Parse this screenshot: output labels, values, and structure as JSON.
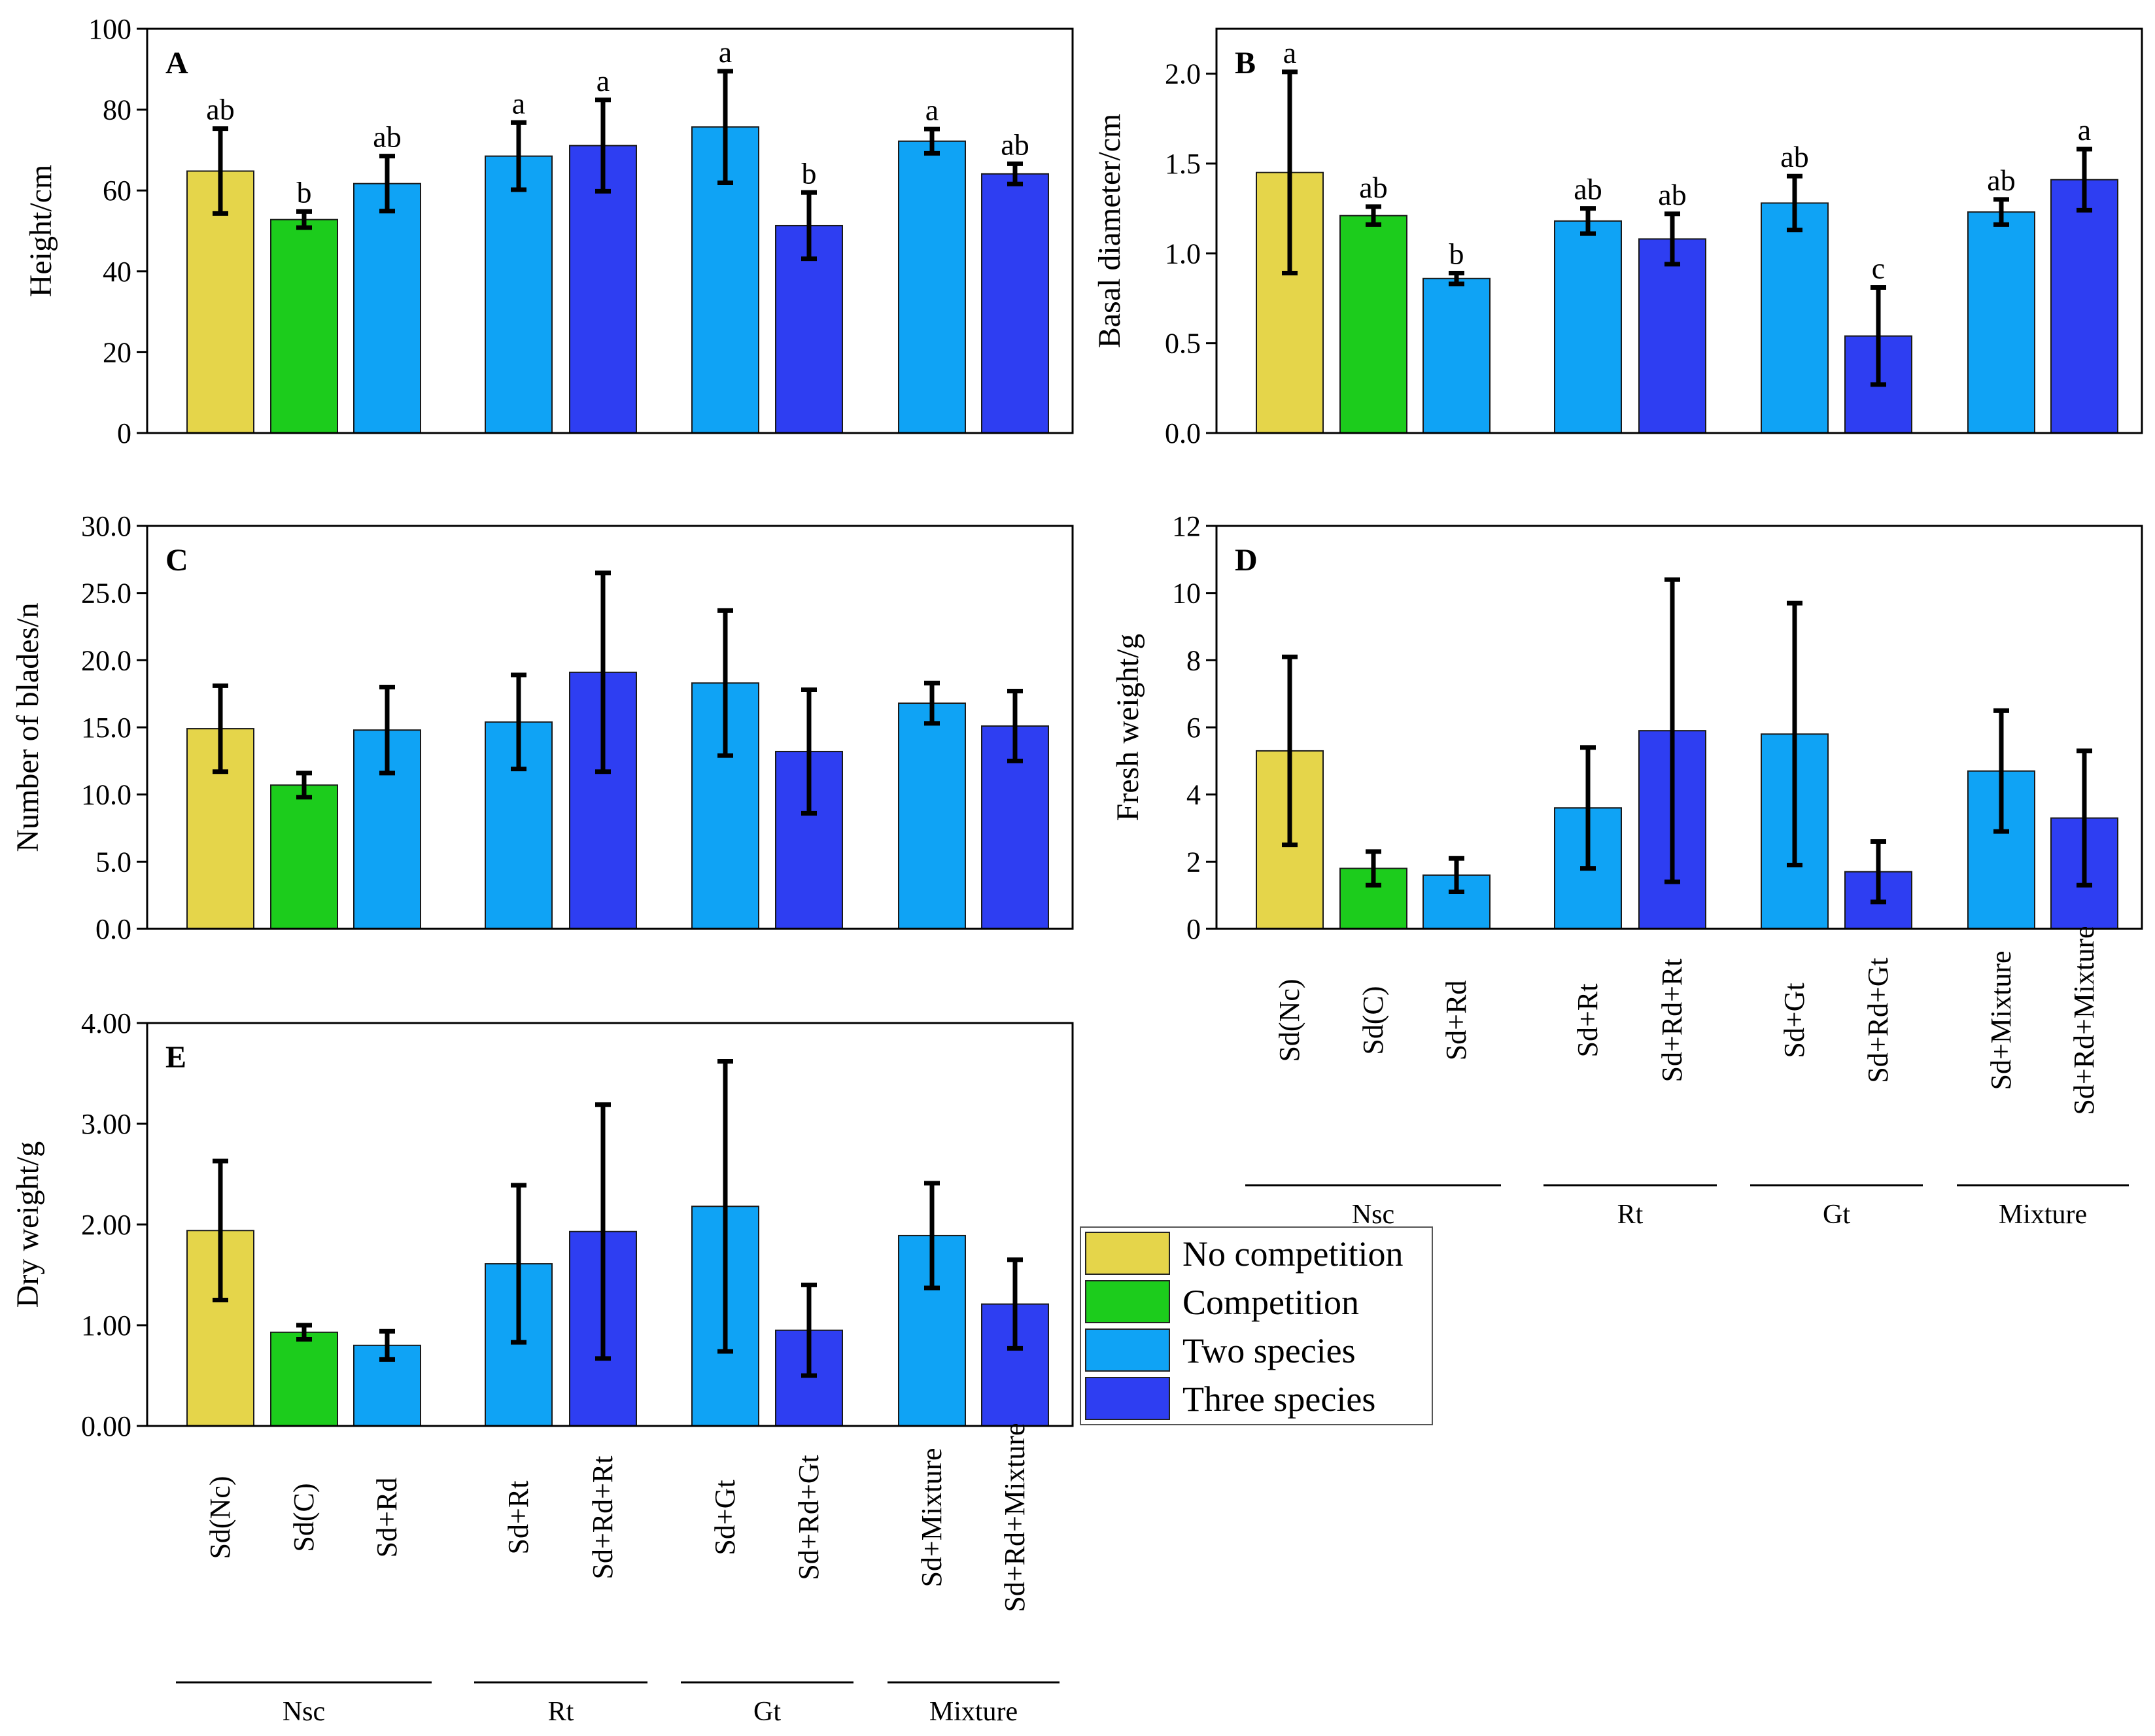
{
  "legend": {
    "items": [
      {
        "label": "No competition",
        "color": "#e5d54a"
      },
      {
        "label": "Competition",
        "color": "#1ccc1c"
      },
      {
        "label": "Two species",
        "color": "#0fa3f5"
      },
      {
        "label": "Three species",
        "color": "#2e3ef2"
      }
    ]
  },
  "chart_data": {
    "type": "bar",
    "categories": [
      "Sd(Nc)",
      "Sd(C)",
      "Sd+Rd",
      "Sd+Rt",
      "Sd+Rd+Rt",
      "Sd+Gt",
      "Sd+Rd+Gt",
      "Sd+Mixture",
      "Sd+Rd+Mixture"
    ],
    "category_groups": [
      "No competition",
      "Competition",
      "Two species",
      "Two species",
      "Three species",
      "Two species",
      "Three species",
      "Two species",
      "Three species"
    ],
    "groups": [
      {
        "label": "Nsc",
        "from": 0,
        "to": 2
      },
      {
        "label": "Rt",
        "from": 3,
        "to": 4
      },
      {
        "label": "Gt",
        "from": 5,
        "to": 6
      },
      {
        "label": "Mixture",
        "from": 7,
        "to": 8
      }
    ],
    "panels": [
      {
        "id": "A",
        "ylabel": "Height/cm",
        "ylim": [
          0,
          100
        ],
        "ticks": [
          "0",
          "20",
          "40",
          "60",
          "80",
          "100"
        ],
        "tick_values": [
          0,
          20,
          40,
          60,
          80,
          100
        ],
        "values": [
          64.8,
          52.8,
          61.7,
          68.5,
          71.1,
          75.7,
          51.3,
          72.2,
          64.1
        ],
        "errors": [
          10.5,
          2.0,
          6.8,
          8.3,
          11.3,
          13.8,
          8.2,
          3.0,
          2.5
        ],
        "letters": [
          "ab",
          "b",
          "ab",
          "a",
          "a",
          "a",
          "b",
          "a",
          "ab"
        ]
      },
      {
        "id": "B",
        "ylabel": "Basal diameter/cm",
        "ylim": [
          0,
          2.25
        ],
        "ticks": [
          "0.0",
          "0.5",
          "1.0",
          "1.5",
          "2.0"
        ],
        "tick_values": [
          0,
          0.5,
          1.0,
          1.5,
          2.0
        ],
        "values": [
          1.45,
          1.21,
          0.86,
          1.18,
          1.08,
          1.28,
          0.54,
          1.23,
          1.41
        ],
        "errors": [
          0.56,
          0.05,
          0.03,
          0.07,
          0.14,
          0.15,
          0.27,
          0.07,
          0.17
        ],
        "letters": [
          "a",
          "ab",
          "b",
          "ab",
          "ab",
          "ab",
          "c",
          "ab",
          "a"
        ]
      },
      {
        "id": "C",
        "ylabel": "Number of blades/n",
        "ylim": [
          0,
          30
        ],
        "ticks": [
          "0.0",
          "5.0",
          "10.0",
          "15.0",
          "20.0",
          "25.0",
          "30.0"
        ],
        "tick_values": [
          0,
          5,
          10,
          15,
          20,
          25,
          30
        ],
        "values": [
          14.9,
          10.7,
          14.8,
          15.4,
          19.1,
          18.3,
          13.2,
          16.8,
          15.1
        ],
        "errors": [
          3.2,
          0.9,
          3.2,
          3.5,
          7.4,
          5.4,
          4.6,
          1.5,
          2.6
        ],
        "letters": []
      },
      {
        "id": "D",
        "ylabel": "Fresh weight/g",
        "ylim": [
          0,
          12
        ],
        "ticks": [
          "0",
          "2",
          "4",
          "6",
          "8",
          "10",
          "12"
        ],
        "tick_values": [
          0,
          2,
          4,
          6,
          8,
          10,
          12
        ],
        "values": [
          5.3,
          1.8,
          1.6,
          3.6,
          5.9,
          5.8,
          1.7,
          4.7,
          3.3
        ],
        "errors": [
          2.8,
          0.5,
          0.5,
          1.8,
          4.5,
          3.9,
          0.9,
          1.8,
          2.0
        ],
        "letters": []
      },
      {
        "id": "E",
        "ylabel": "Dry weight/g",
        "ylim": [
          0,
          4
        ],
        "ticks": [
          "0.00",
          "1.00",
          "2.00",
          "3.00",
          "4.00"
        ],
        "tick_values": [
          0,
          1,
          2,
          3,
          4
        ],
        "values": [
          1.94,
          0.93,
          0.8,
          1.61,
          1.93,
          2.18,
          0.95,
          1.89,
          1.21
        ],
        "errors": [
          0.69,
          0.07,
          0.14,
          0.78,
          1.26,
          1.44,
          0.45,
          0.52,
          0.44
        ],
        "letters": []
      }
    ]
  }
}
